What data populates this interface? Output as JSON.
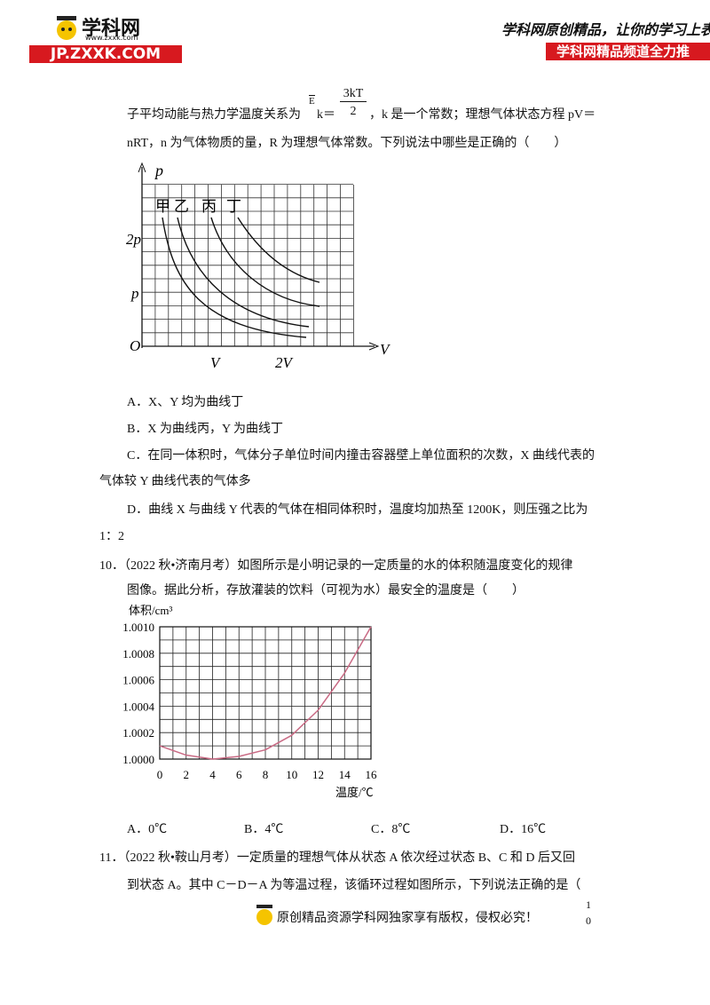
{
  "header": {
    "logo": "学科网",
    "site": "www.zxxk.com",
    "banner": "JP.ZXXK.COM",
    "slogan": "学科网原创精品，让你的学习上表",
    "channel": "学科网精品频道全力推"
  },
  "question9": {
    "line1": "子平均动能与热力学温度关系为",
    "e": "E",
    "k": "k＝",
    "numerator": "3kT",
    "denominator": "2",
    "line1_end": "，k 是一个常数；理想气体状态方程 pV＝",
    "line2": "nRT，n 为气体物质的量，R 为理想气体常数。下列说法中哪些是正确的（　　）",
    "figure": {
      "p_axis": "p",
      "two_p": "2p",
      "p": "p",
      "origin": "O",
      "v": "V",
      "two_v": "2V",
      "v_axis": "V",
      "curves": [
        "甲",
        "乙",
        "丙",
        "丁"
      ]
    },
    "options": [
      "A．X、Y 均为曲线丁",
      "B．X 为曲线丙，Y 为曲线丁",
      "C．在同一体积时，气体分子单位时间内撞击容器壁上单位面积的次数，X 曲线代表的",
      "气体较 Y 曲线代表的气体多",
      "D．曲线 X 与曲线 Y 代表的气体在相同体积时，温度均加热至 1200K，则压强之比为",
      "1：2"
    ]
  },
  "question10": {
    "lines": [
      "10．（2022 秋•济南月考）如图所示是小明记录的一定质量的水的体积随温度变化的规律",
      "图像。据此分析，存放灌装的饮料（可视为水）最安全的温度是（　　）"
    ],
    "options": [
      "A．0℃",
      "B．4℃",
      "C．8℃",
      "D．16℃"
    ]
  },
  "chart_data": {
    "type": "line",
    "ylabel": "体积/cm³",
    "xlabel": "温度/℃",
    "x": [
      0,
      2,
      4,
      6,
      8,
      10,
      12,
      14,
      16
    ],
    "values": [
      1.0001,
      1.00003,
      1.0,
      1.00002,
      1.00007,
      1.00018,
      1.00037,
      1.00065,
      1.001
    ],
    "color": "#c96a84",
    "xlim": [
      0,
      16
    ],
    "ylim": [
      1.0,
      1.001
    ],
    "xticks": [
      0,
      2,
      4,
      6,
      8,
      10,
      12,
      14,
      16
    ],
    "yticks": [
      {
        "value": 1.0,
        "label": "1.0000"
      },
      {
        "value": 1.0002,
        "label": "1.0002"
      },
      {
        "value": 1.0004,
        "label": "1.0004"
      },
      {
        "value": 1.0006,
        "label": "1.0006"
      },
      {
        "value": 1.0008,
        "label": "1.0008"
      },
      {
        "value": 1.001,
        "label": "1.0010"
      }
    ],
    "grid": true
  },
  "question11": {
    "lines": [
      "11．（2022 秋•鞍山月考）一定质量的理想气体从状态 A 依次经过状态 B、C 和 D 后又回",
      "到状态 A。其中 C－D－A 为等温过程，该循环过程如图所示，下列说法正确的是（"
    ]
  },
  "footer": {
    "notice": "原创精品资源学科网独家享有版权，侵权必究！",
    "page": [
      "1",
      "0"
    ]
  }
}
